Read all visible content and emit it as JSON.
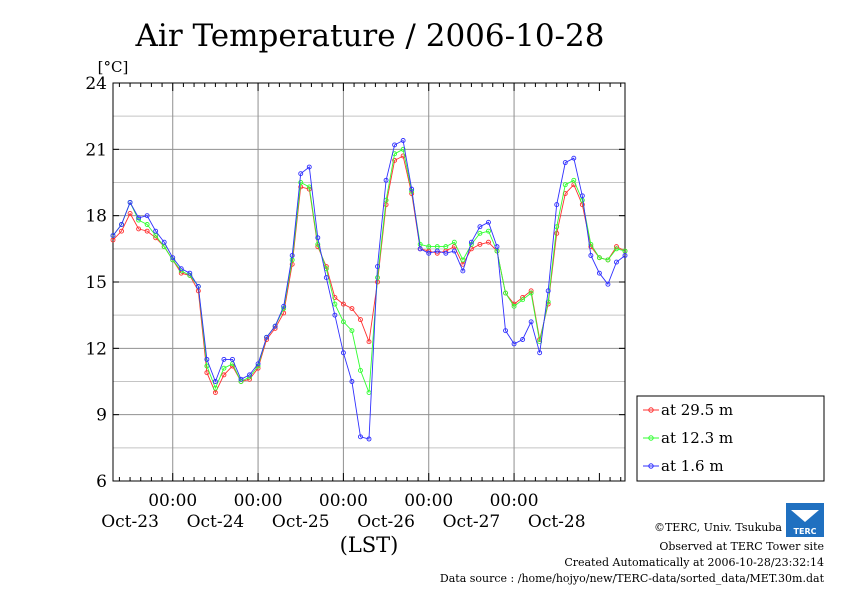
{
  "chart_data": {
    "type": "line",
    "title": "Air Temperature / 2006-10-28",
    "ylabel": "[°C]",
    "xlabel": "(LST)",
    "ylim": [
      6,
      24
    ],
    "yticks": [
      6,
      9,
      12,
      15,
      18,
      21,
      24
    ],
    "x_unit": "days since Oct-22 00:00 LST",
    "xlim": [
      0.3,
      6.3
    ],
    "x_time_labels": [
      {
        "x": 1,
        "label": "00:00"
      },
      {
        "x": 2,
        "label": "00:00"
      },
      {
        "x": 3,
        "label": "00:00"
      },
      {
        "x": 4,
        "label": "00:00"
      },
      {
        "x": 5,
        "label": "00:00"
      }
    ],
    "x_date_labels": [
      {
        "x": 0.5,
        "label": "Oct-23"
      },
      {
        "x": 1.5,
        "label": "Oct-24"
      },
      {
        "x": 2.5,
        "label": "Oct-25"
      },
      {
        "x": 3.5,
        "label": "Oct-26"
      },
      {
        "x": 4.5,
        "label": "Oct-27"
      },
      {
        "x": 5.5,
        "label": "Oct-28"
      }
    ],
    "grid": true,
    "legend_position": "right",
    "series": [
      {
        "name": "at 29.5 m",
        "color": "#ff3030",
        "x": [
          0.3,
          0.4,
          0.5,
          0.6,
          0.7,
          0.8,
          0.9,
          1.0,
          1.1,
          1.2,
          1.3,
          1.4,
          1.5,
          1.6,
          1.7,
          1.8,
          1.9,
          2.0,
          2.1,
          2.2,
          2.3,
          2.4,
          2.5,
          2.6,
          2.7,
          2.8,
          2.9,
          3.0,
          3.1,
          3.2,
          3.3,
          3.4,
          3.5,
          3.6,
          3.7,
          3.8,
          3.9,
          4.0,
          4.1,
          4.2,
          4.3,
          4.4,
          4.5,
          4.6,
          4.7,
          4.8,
          4.9,
          5.0,
          5.1,
          5.2,
          5.3,
          5.4,
          5.5,
          5.6,
          5.7,
          5.8,
          5.9,
          6.0,
          6.1,
          6.2,
          6.3
        ],
        "y": [
          16.9,
          17.3,
          18.1,
          17.4,
          17.3,
          17.0,
          16.6,
          16.0,
          15.4,
          15.3,
          14.6,
          10.9,
          10.0,
          10.8,
          11.2,
          10.5,
          10.6,
          11.1,
          12.4,
          12.9,
          13.6,
          15.8,
          19.3,
          19.2,
          16.6,
          15.7,
          14.3,
          14.0,
          13.8,
          13.3,
          12.3,
          15.0,
          18.5,
          20.5,
          20.7,
          19.0,
          16.5,
          16.4,
          16.3,
          16.4,
          16.6,
          15.8,
          16.5,
          16.7,
          16.8,
          16.4,
          14.5,
          14.0,
          14.3,
          14.6,
          12.4,
          14.0,
          17.2,
          19.0,
          19.4,
          18.5,
          16.6,
          16.1,
          16.0,
          16.6,
          16.4
        ]
      },
      {
        "name": "at 12.3 m",
        "color": "#30ff30",
        "x": [
          0.3,
          0.4,
          0.5,
          0.6,
          0.7,
          0.8,
          0.9,
          1.0,
          1.1,
          1.2,
          1.3,
          1.4,
          1.5,
          1.6,
          1.7,
          1.8,
          1.9,
          2.0,
          2.1,
          2.2,
          2.3,
          2.4,
          2.5,
          2.6,
          2.7,
          2.8,
          2.9,
          3.0,
          3.1,
          3.2,
          3.3,
          3.4,
          3.5,
          3.6,
          3.7,
          3.8,
          3.9,
          4.0,
          4.1,
          4.2,
          4.3,
          4.4,
          4.5,
          4.6,
          4.7,
          4.8,
          4.9,
          5.0,
          5.1,
          5.2,
          5.3,
          5.4,
          5.5,
          5.6,
          5.7,
          5.8,
          5.9,
          6.0,
          6.1,
          6.2,
          6.3
        ],
        "y": [
          17.1,
          17.6,
          18.6,
          17.8,
          17.6,
          17.1,
          16.6,
          16.0,
          15.5,
          15.3,
          14.8,
          11.2,
          10.2,
          11.1,
          11.3,
          10.5,
          10.7,
          11.2,
          12.5,
          13.0,
          13.8,
          16.0,
          19.5,
          19.3,
          16.7,
          15.6,
          14.0,
          13.2,
          12.8,
          11.0,
          10.0,
          15.2,
          18.7,
          20.8,
          21.0,
          19.1,
          16.7,
          16.6,
          16.6,
          16.6,
          16.8,
          16.0,
          16.7,
          17.2,
          17.3,
          16.4,
          14.5,
          13.9,
          14.2,
          14.5,
          12.3,
          14.1,
          17.5,
          19.4,
          19.6,
          18.7,
          16.7,
          16.1,
          16.0,
          16.5,
          16.4
        ]
      },
      {
        "name": "at 1.6 m",
        "color": "#3030ff",
        "x": [
          0.3,
          0.4,
          0.5,
          0.6,
          0.7,
          0.8,
          0.9,
          1.0,
          1.1,
          1.2,
          1.3,
          1.4,
          1.5,
          1.6,
          1.7,
          1.8,
          1.9,
          2.0,
          2.1,
          2.2,
          2.3,
          2.4,
          2.5,
          2.6,
          2.7,
          2.8,
          2.9,
          3.0,
          3.1,
          3.2,
          3.3,
          3.4,
          3.5,
          3.6,
          3.7,
          3.8,
          3.9,
          4.0,
          4.1,
          4.2,
          4.3,
          4.4,
          4.5,
          4.6,
          4.7,
          4.8,
          4.9,
          5.0,
          5.1,
          5.2,
          5.3,
          5.4,
          5.5,
          5.6,
          5.7,
          5.8,
          5.9,
          6.0,
          6.1,
          6.2,
          6.3
        ],
        "y": [
          17.1,
          17.6,
          18.6,
          17.9,
          18.0,
          17.3,
          16.8,
          16.1,
          15.6,
          15.4,
          14.8,
          11.5,
          10.5,
          11.5,
          11.5,
          10.6,
          10.8,
          11.3,
          12.5,
          13.0,
          13.9,
          16.2,
          19.9,
          20.2,
          17.0,
          15.2,
          13.5,
          11.8,
          10.5,
          8.0,
          7.9,
          15.7,
          19.6,
          21.2,
          21.4,
          19.2,
          16.5,
          16.3,
          16.4,
          16.3,
          16.4,
          15.5,
          16.8,
          17.5,
          17.7,
          16.6,
          12.8,
          12.2,
          12.4,
          13.2,
          11.8,
          14.6,
          18.5,
          20.4,
          20.6,
          18.9,
          16.2,
          15.4,
          14.9,
          15.9,
          16.2
        ]
      }
    ]
  },
  "footer": {
    "copyright": "©TERC, Univ. Tsukuba",
    "site": "Observed at TERC Tower site",
    "created": "Created Automatically at 2006-10-28/23:32:14",
    "source": "Data source : /home/hojyo/new/TERC-data/sorted_data/MET.30m.dat"
  },
  "logo": {
    "text": "TERC",
    "color": "#2070c0"
  }
}
